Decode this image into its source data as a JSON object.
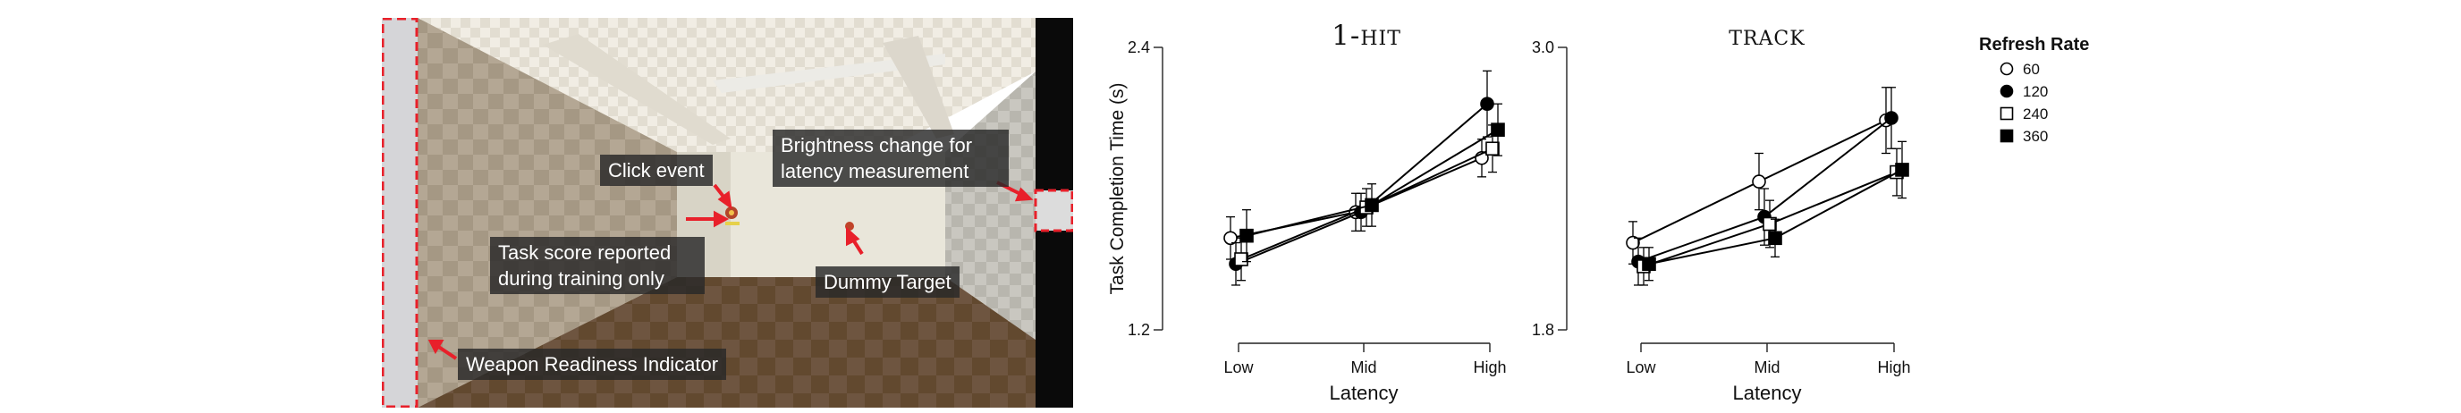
{
  "scene": {
    "callouts": {
      "click_event": "Click event",
      "brightness": "Brightness change for latency measurement",
      "task_score": "Task score reported during training only",
      "dummy_target": "Dummy Target",
      "weapon_readiness": "Weapon Readiness Indicator"
    },
    "colors": {
      "callout_arrow": "#e8202a",
      "highlight_border": "#e8202a"
    }
  },
  "legend": {
    "title": "Refresh Rate",
    "items": [
      {
        "label": "60",
        "marker": "open-circle"
      },
      {
        "label": "120",
        "marker": "filled-circle"
      },
      {
        "label": "240",
        "marker": "open-square"
      },
      {
        "label": "360",
        "marker": "filled-square"
      }
    ]
  },
  "chart_data": [
    {
      "type": "line",
      "title": "1-hit",
      "ylabel": "Task Completion Time (s)",
      "xlabel": "Latency",
      "categories": [
        "Low",
        "Mid",
        "High"
      ],
      "ylim": [
        1.2,
        2.4
      ],
      "yticks": [
        "1.2",
        "2.4"
      ],
      "series": [
        {
          "name": "60",
          "values": [
            1.59,
            1.7,
            1.93
          ],
          "err": [
            0.09,
            0.08,
            0.08
          ]
        },
        {
          "name": "120",
          "values": [
            1.48,
            1.7,
            2.16
          ],
          "err": [
            0.09,
            0.08,
            0.14
          ]
        },
        {
          "name": "240",
          "values": [
            1.5,
            1.72,
            1.97
          ],
          "err": [
            0.09,
            0.08,
            0.1
          ]
        },
        {
          "name": "360",
          "values": [
            1.6,
            1.73,
            2.05
          ],
          "err": [
            0.11,
            0.09,
            0.11
          ]
        }
      ]
    },
    {
      "type": "line",
      "title": "track",
      "xlabel": "Latency",
      "categories": [
        "Low",
        "Mid",
        "High"
      ],
      "ylim": [
        1.8,
        3.0
      ],
      "yticks": [
        "1.8",
        "3.0"
      ],
      "series": [
        {
          "name": "60",
          "values": [
            2.17,
            2.43,
            2.69
          ],
          "err": [
            0.09,
            0.12,
            0.14
          ]
        },
        {
          "name": "120",
          "values": [
            2.09,
            2.28,
            2.7
          ],
          "err": [
            0.1,
            0.12,
            0.13
          ]
        },
        {
          "name": "240",
          "values": [
            2.07,
            2.25,
            2.47
          ],
          "err": [
            0.08,
            0.1,
            0.1
          ]
        },
        {
          "name": "360",
          "values": [
            2.08,
            2.19,
            2.48
          ],
          "err": [
            0.07,
            0.08,
            0.12
          ]
        }
      ]
    }
  ]
}
